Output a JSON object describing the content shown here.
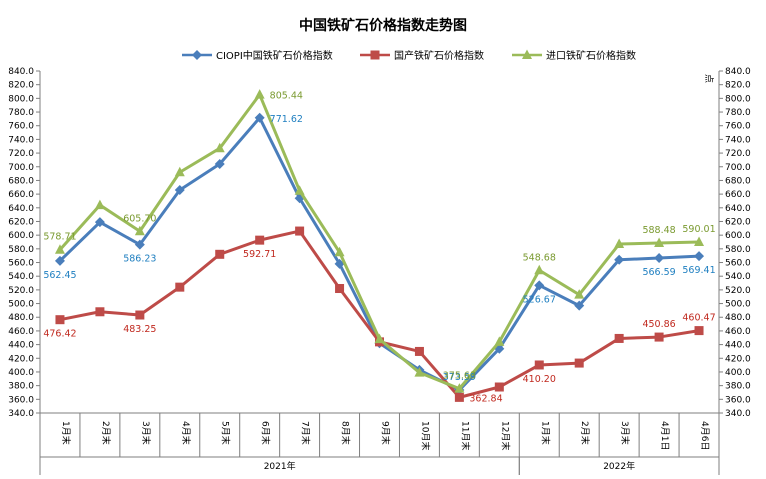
{
  "chart_data": {
    "type": "line",
    "title": "中国铁矿石价格指数走势图",
    "ylabel_right": "点",
    "ylim": [
      340,
      840
    ],
    "ytick_step": 20,
    "categories": [
      "1月末",
      "2月末",
      "3月末",
      "4月末",
      "5月末",
      "6月末",
      "7月末",
      "8月末",
      "9月末",
      "10月末",
      "11月末",
      "12月末",
      "1月末",
      "2月末",
      "3月末",
      "4月1日",
      "4月6日"
    ],
    "year_groups": [
      {
        "label": "2021年",
        "from": 0,
        "to": 11
      },
      {
        "label": "2022年",
        "from": 12,
        "to": 16
      }
    ],
    "legend_position": "top",
    "series": [
      {
        "name": "CIOPI中国铁矿石价格指数",
        "color": "#4a7ebb",
        "label_color": "#1f7fc0",
        "marker": "diamond",
        "values": [
          562.45,
          619,
          586.23,
          666,
          704,
          771.62,
          654,
          558,
          442,
          403,
          373.59,
          434,
          526.67,
          497,
          564,
          566.59,
          569.41
        ],
        "labels": [
          {
            "i": 0,
            "text": "562.45",
            "pos": "below"
          },
          {
            "i": 2,
            "text": "586.23",
            "pos": "below"
          },
          {
            "i": 5,
            "text": "771.62",
            "pos": "right"
          },
          {
            "i": 10,
            "text": "373.59",
            "pos": "above"
          },
          {
            "i": 12,
            "text": "526.67",
            "pos": "below"
          },
          {
            "i": 15,
            "text": "566.59",
            "pos": "below"
          },
          {
            "i": 16,
            "text": "569.41",
            "pos": "below"
          }
        ]
      },
      {
        "name": "国产铁矿石价格指数",
        "color": "#be4b48",
        "label_color": "#c0291f",
        "marker": "square",
        "values": [
          476.42,
          488,
          483.25,
          524,
          572,
          592.71,
          606,
          522,
          444,
          430,
          362.84,
          378,
          410.2,
          413,
          449,
          451,
          460.47
        ],
        "labels": [
          {
            "i": 0,
            "text": "476.42",
            "pos": "below"
          },
          {
            "i": 2,
            "text": "483.25",
            "pos": "below"
          },
          {
            "i": 5,
            "text": "592.71",
            "pos": "below"
          },
          {
            "i": 10,
            "text": "362.84",
            "pos": "right"
          },
          {
            "i": 12,
            "text": "410.20",
            "pos": "below"
          },
          {
            "i": 15,
            "text": "450.86",
            "pos": "above"
          },
          {
            "i": 16,
            "text": "460.47",
            "pos": "above"
          }
        ]
      },
      {
        "name": "进口铁矿石价格指数",
        "color": "#9bbb59",
        "label_color": "#7a9a30",
        "marker": "triangle",
        "values": [
          578.71,
          644,
          605.7,
          692,
          727,
          805.44,
          665,
          575,
          448,
          399,
          375.63,
          444,
          548.68,
          513,
          587,
          588.48,
          590.01
        ],
        "labels": [
          {
            "i": 0,
            "text": "578.71",
            "pos": "above"
          },
          {
            "i": 2,
            "text": "605.70",
            "pos": "above"
          },
          {
            "i": 5,
            "text": "805.44",
            "pos": "right"
          },
          {
            "i": 10,
            "text": "375.63",
            "pos": "above"
          },
          {
            "i": 12,
            "text": "548.68",
            "pos": "above"
          },
          {
            "i": 15,
            "text": "588.48",
            "pos": "above"
          },
          {
            "i": 16,
            "text": "590.01",
            "pos": "above"
          }
        ]
      }
    ]
  }
}
